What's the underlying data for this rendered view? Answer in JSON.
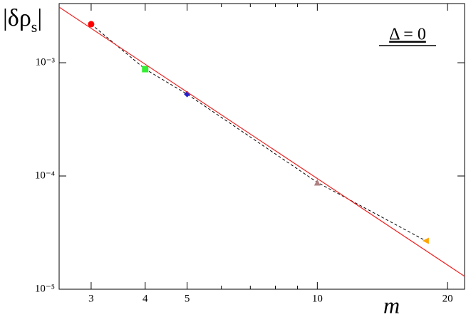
{
  "chart_data": {
    "type": "scatter",
    "log_x": true,
    "log_y": true,
    "ylabel": [
      "|δρ",
      "s",
      "|"
    ],
    "xlabel": "m",
    "annotation": "Δ = 0",
    "xlim": [
      2.53,
      21.9
    ],
    "ylim": [
      1e-05,
      0.00333
    ],
    "xticks": [
      3,
      4,
      5,
      10,
      20
    ],
    "xminorticks": [
      6,
      7,
      8,
      9
    ],
    "yticks": [
      {
        "value": 1e-05,
        "label": "10⁻⁵"
      },
      {
        "value": 0.0001,
        "label": "10⁻⁴"
      },
      {
        "value": 0.001,
        "label": "10⁻³"
      }
    ],
    "series": [
      {
        "x": [
          3,
          4,
          5,
          10,
          17.8
        ],
        "values": [
          0.00219,
          0.000878,
          0.000528,
          8.78e-05,
          2.68e-05
        ],
        "colors": [
          "#ff0000",
          "#33ee33",
          "#2222cc",
          "#b08080",
          "#ffa500"
        ],
        "markers": [
          "circle",
          "square",
          "diamond",
          "triangle-up",
          "triangle-left"
        ],
        "line_color": "#000000",
        "dashed": true
      },
      {
        "x": [
          2.53,
          21.9
        ],
        "values": [
          0.0031,
          1.3e-05
        ],
        "line_color": "#ee2222",
        "dashed": false
      }
    ]
  }
}
